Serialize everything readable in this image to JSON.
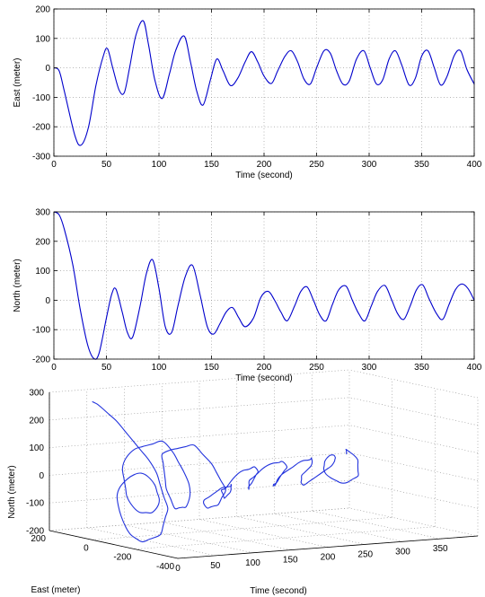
{
  "colors": {
    "line": "#0000cc",
    "axes": "#000000",
    "grid": "#8a8a8a"
  },
  "chart_data": [
    {
      "type": "line",
      "xlabel": "Time (second)",
      "ylabel": "East (meter)",
      "xlim": [
        0,
        400
      ],
      "ylim": [
        -300,
        200
      ],
      "xticks": [
        0,
        50,
        100,
        150,
        200,
        250,
        300,
        350,
        400
      ],
      "yticks": [
        -300,
        -200,
        -100,
        0,
        100,
        200
      ],
      "grid": true,
      "series": [
        {
          "x": [
            0,
            5,
            10,
            20,
            26,
            33,
            40,
            47,
            51,
            56,
            62,
            67,
            72,
            78,
            85,
            90,
            96,
            103,
            110,
            116,
            124,
            130,
            136,
            142,
            149,
            155,
            161,
            168,
            175,
            182,
            188,
            194,
            200,
            207,
            213,
            220,
            226,
            232,
            238,
            244,
            250,
            257,
            263,
            269,
            275,
            281,
            288,
            295,
            301,
            307,
            313,
            319,
            325,
            331,
            338,
            344,
            350,
            356,
            362,
            368,
            374,
            381,
            387,
            393,
            400
          ],
          "y": [
            0,
            -10,
            -80,
            -230,
            -262,
            -200,
            -60,
            40,
            65,
            0,
            -75,
            -84,
            0,
            110,
            160,
            80,
            -40,
            -104,
            -20,
            60,
            108,
            20,
            -80,
            -126,
            -40,
            30,
            -10,
            -60,
            -35,
            20,
            55,
            20,
            -28,
            -53,
            -10,
            40,
            58,
            20,
            -38,
            -55,
            0,
            58,
            50,
            -10,
            -55,
            -45,
            30,
            58,
            0,
            -55,
            -40,
            30,
            58,
            10,
            -58,
            -35,
            40,
            58,
            0,
            -58,
            -30,
            42,
            58,
            -5,
            -55
          ]
        }
      ]
    },
    {
      "type": "line",
      "xlabel": "Time (second)",
      "ylabel": "North (meter)",
      "xlim": [
        0,
        400
      ],
      "ylim": [
        -200,
        300
      ],
      "xticks": [
        0,
        50,
        100,
        150,
        200,
        250,
        300,
        350,
        400
      ],
      "yticks": [
        -200,
        -100,
        0,
        100,
        200,
        300
      ],
      "grid": true,
      "series": [
        {
          "x": [
            0,
            5,
            10,
            18,
            25,
            32,
            38,
            43,
            50,
            55,
            59,
            65,
            70,
            75,
            82,
            88,
            94,
            100,
            106,
            112,
            118,
            125,
            132,
            139,
            146,
            152,
            158,
            164,
            170,
            176,
            182,
            190,
            197,
            204,
            210,
            216,
            222,
            229,
            235,
            241,
            247,
            253,
            259,
            265,
            271,
            278,
            284,
            290,
            296,
            302,
            308,
            315,
            321,
            327,
            333,
            339,
            345,
            351,
            357,
            364,
            370,
            376,
            382,
            388,
            394,
            400
          ],
          "y": [
            300,
            290,
            240,
            120,
            -30,
            -150,
            -198,
            -180,
            -60,
            20,
            38,
            -40,
            -110,
            -125,
            -20,
            90,
            137,
            40,
            -90,
            -110,
            -20,
            80,
            118,
            20,
            -90,
            -115,
            -80,
            -40,
            -25,
            -60,
            -90,
            -60,
            10,
            30,
            0,
            -40,
            -70,
            -20,
            30,
            45,
            0,
            -50,
            -70,
            -15,
            35,
            48,
            0,
            -45,
            -70,
            -20,
            30,
            50,
            5,
            -45,
            -65,
            -20,
            35,
            52,
            5,
            -45,
            -65,
            -15,
            35,
            55,
            40,
            0
          ]
        }
      ]
    },
    {
      "type": "line",
      "projection": "3d",
      "xlabel": "Time (second)",
      "ylabel": "East (meter)",
      "zlabel": "North (meter)",
      "xlim": [
        0,
        400
      ],
      "ylim": [
        -400,
        200
      ],
      "zlim": [
        -200,
        300
      ],
      "xticks": [
        0,
        50,
        100,
        150,
        200,
        250,
        300,
        350
      ],
      "yticks": [
        -400,
        -200,
        0,
        200
      ],
      "zticks": [
        -200,
        -100,
        0,
        100,
        200,
        300
      ],
      "grid": true
    }
  ]
}
